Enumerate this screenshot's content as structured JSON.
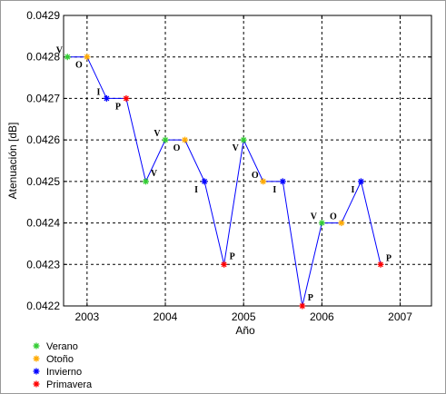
{
  "chart_data": {
    "type": "line",
    "xlabel": "Año",
    "ylabel": "Atenuación [dB]",
    "x_ticks": [
      2003,
      2004,
      2005,
      2006,
      2007
    ],
    "x_tick_labels": [
      "2003",
      "2004",
      "2005",
      "2006",
      "2007"
    ],
    "xlim": [
      2002.7,
      2007.4
    ],
    "ylim": [
      0.0422,
      0.0429
    ],
    "y_ticks": [
      0.0422,
      0.0423,
      0.0424,
      0.0425,
      0.0426,
      0.0427,
      0.0428,
      0.0429
    ],
    "y_tick_labels": [
      "0.0422",
      "0.0423",
      "0.0424",
      "0.0425",
      "0.0426",
      "0.0427",
      "0.0428",
      "0.0429"
    ],
    "grid": true,
    "line_color": "#0000ff",
    "points": [
      {
        "x": 2002.75,
        "y": 0.0428,
        "label": "V",
        "season": "verano"
      },
      {
        "x": 2003.0,
        "y": 0.0428,
        "label": "O",
        "season": "otono"
      },
      {
        "x": 2003.25,
        "y": 0.0427,
        "label": "I",
        "season": "invierno"
      },
      {
        "x": 2003.5,
        "y": 0.0427,
        "label": "P",
        "season": "primavera"
      },
      {
        "x": 2003.75,
        "y": 0.0425,
        "label": "V",
        "season": "verano"
      },
      {
        "x": 2004.0,
        "y": 0.0426,
        "label": "V",
        "season": "verano"
      },
      {
        "x": 2004.25,
        "y": 0.0426,
        "label": "O",
        "season": "otono"
      },
      {
        "x": 2004.5,
        "y": 0.0425,
        "label": "I",
        "season": "invierno"
      },
      {
        "x": 2004.75,
        "y": 0.0423,
        "label": "P",
        "season": "primavera"
      },
      {
        "x": 2005.0,
        "y": 0.0426,
        "label": "V",
        "season": "verano"
      },
      {
        "x": 2005.25,
        "y": 0.0425,
        "label": "O",
        "season": "otono"
      },
      {
        "x": 2005.5,
        "y": 0.0425,
        "label": "I",
        "season": "invierno"
      },
      {
        "x": 2005.75,
        "y": 0.0422,
        "label": "P",
        "season": "primavera"
      },
      {
        "x": 2006.0,
        "y": 0.0424,
        "label": "V",
        "season": "verano"
      },
      {
        "x": 2006.25,
        "y": 0.0424,
        "label": "O",
        "season": "otono"
      },
      {
        "x": 2006.5,
        "y": 0.0425,
        "label": "I",
        "season": "invierno"
      },
      {
        "x": 2006.75,
        "y": 0.0423,
        "label": "P",
        "season": "primavera"
      }
    ],
    "legend": {
      "placement": "bottom-left",
      "entries": [
        {
          "key": "verano",
          "label": "Verano",
          "color": "#33cc33"
        },
        {
          "key": "otono",
          "label": "Otoño",
          "color": "#ffaa00"
        },
        {
          "key": "invierno",
          "label": "Invierno",
          "color": "#0000ff"
        },
        {
          "key": "primavera",
          "label": "Primavera",
          "color": "#ff0000"
        }
      ]
    }
  }
}
